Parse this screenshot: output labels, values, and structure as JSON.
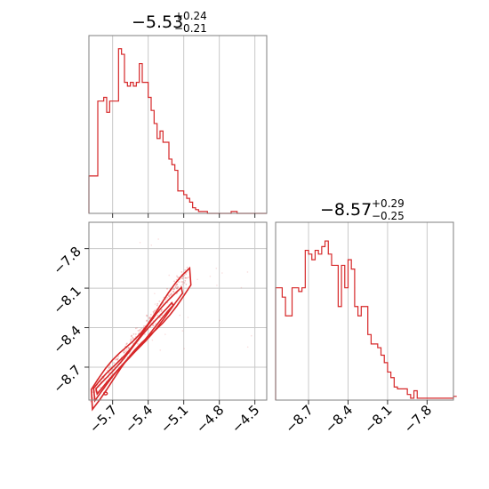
{
  "colors": {
    "series": "#d62728",
    "frame": "#7f7f7f",
    "grid": "#c8c8c8"
  },
  "chart_data": [
    {
      "type": "histogram",
      "panel": "top-left",
      "title": {
        "median": "−5.53",
        "upper": "+0.24",
        "lower": "−0.21"
      },
      "xlim": [
        -5.9,
        -4.4
      ],
      "bin_width": 0.025,
      "bin_start": -5.9,
      "counts": [
        0.2,
        0.2,
        0.2,
        0.6,
        0.6,
        0.62,
        0.54,
        0.6,
        0.6,
        0.6,
        0.88,
        0.85,
        0.7,
        0.68,
        0.7,
        0.68,
        0.7,
        0.8,
        0.7,
        0.7,
        0.62,
        0.55,
        0.48,
        0.4,
        0.44,
        0.38,
        0.38,
        0.29,
        0.26,
        0.23,
        0.12,
        0.12,
        0.1,
        0.08,
        0.06,
        0.03,
        0.02,
        0.01,
        0.01,
        0.01,
        0.0,
        0.0,
        0.0,
        0.0,
        0.0,
        0.0,
        0.0,
        0.0,
        0.01,
        0.01,
        0.0,
        0.0,
        0.0,
        0.0,
        0.0,
        0.0,
        0.0,
        0.0,
        0.0,
        0.0
      ],
      "ylim": [
        0,
        0.95
      ],
      "grid": true
    },
    {
      "type": "contour",
      "panel": "bottom-left",
      "xlim": [
        -5.9,
        -4.4
      ],
      "ylim": [
        -8.95,
        -7.6
      ],
      "xticks": [
        "−5.7",
        "−5.4",
        "−5.1",
        "−4.8",
        "−4.5"
      ],
      "xtick_values": [
        -5.7,
        -5.4,
        -5.1,
        -4.8,
        -4.5
      ],
      "yticks": [
        "−7.8",
        "−8.1",
        "−8.4",
        "−8.7"
      ],
      "ytick_values": [
        -7.8,
        -8.1,
        -8.4,
        -8.7
      ],
      "grid": true
    },
    {
      "type": "histogram",
      "panel": "bottom-right",
      "title": {
        "median": "−8.57",
        "upper": "+0.29",
        "lower": "−0.25"
      },
      "xlim": [
        -8.95,
        -7.6
      ],
      "bin_width": 0.025,
      "bin_start": -8.95,
      "counts": [
        0.6,
        0.6,
        0.55,
        0.45,
        0.45,
        0.6,
        0.6,
        0.58,
        0.6,
        0.8,
        0.78,
        0.75,
        0.8,
        0.78,
        0.82,
        0.85,
        0.78,
        0.72,
        0.72,
        0.5,
        0.72,
        0.6,
        0.75,
        0.7,
        0.5,
        0.45,
        0.5,
        0.5,
        0.35,
        0.3,
        0.3,
        0.28,
        0.24,
        0.2,
        0.15,
        0.12,
        0.07,
        0.06,
        0.06,
        0.06,
        0.03,
        0.01,
        0.05,
        0.01,
        0.01,
        0.01,
        0.01,
        0.01,
        0.01,
        0.01,
        0.01,
        0.01,
        0.01,
        0.01,
        0.02
      ],
      "ylim": [
        0,
        0.95
      ],
      "xticks": [
        "−8.7",
        "−8.4",
        "−8.1",
        "−7.8"
      ],
      "xtick_values": [
        -8.7,
        -8.4,
        -8.1,
        -7.8
      ],
      "grid": true
    }
  ]
}
